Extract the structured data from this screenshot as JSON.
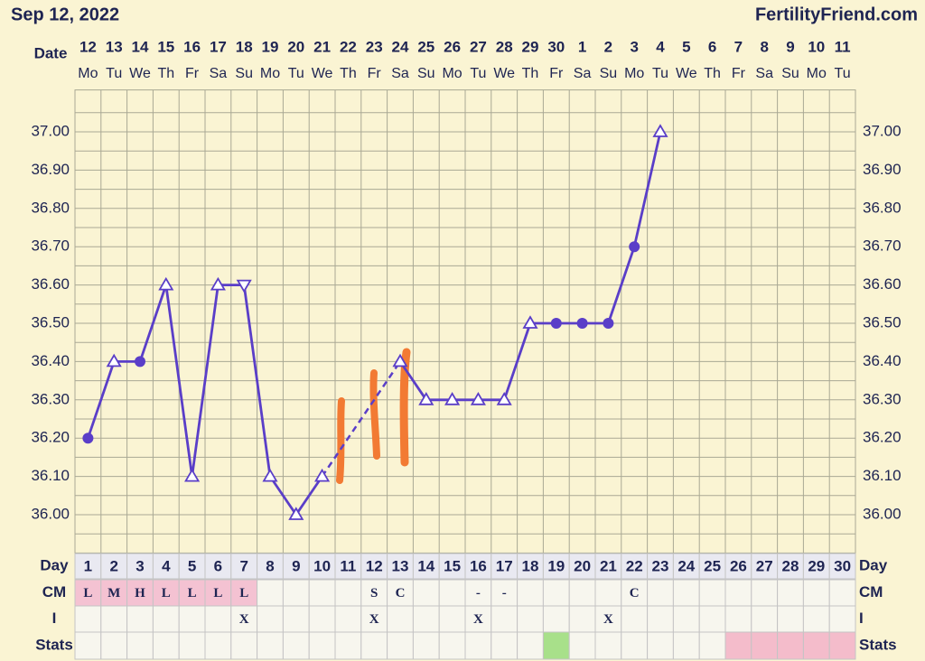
{
  "chart_data": {
    "type": "line",
    "title": "Sep 12, 2022",
    "source": "FertilityFriend.com",
    "date_label": "Date",
    "dates": [
      "12",
      "13",
      "14",
      "15",
      "16",
      "17",
      "18",
      "19",
      "20",
      "21",
      "22",
      "23",
      "24",
      "25",
      "26",
      "27",
      "28",
      "29",
      "30",
      "1",
      "2",
      "3",
      "4",
      "5",
      "6",
      "7",
      "8",
      "9",
      "10",
      "11"
    ],
    "weekdays": [
      "Mo",
      "Tu",
      "We",
      "Th",
      "Fr",
      "Sa",
      "Su",
      "Mo",
      "Tu",
      "We",
      "Th",
      "Fr",
      "Sa",
      "Su",
      "Mo",
      "Tu",
      "We",
      "Th",
      "Fr",
      "Sa",
      "Su",
      "Mo",
      "Tu",
      "We",
      "Th",
      "Fr",
      "Sa",
      "Su",
      "Mo",
      "Tu"
    ],
    "day_label": "Day",
    "categories": [
      1,
      2,
      3,
      4,
      5,
      6,
      7,
      8,
      9,
      10,
      11,
      12,
      13,
      14,
      15,
      16,
      17,
      18,
      19,
      20,
      21,
      22,
      23,
      24,
      25,
      26,
      27,
      28,
      29,
      30
    ],
    "series": [
      {
        "color": "#5a3ec8",
        "values": [
          36.2,
          36.4,
          36.4,
          36.6,
          36.1,
          36.6,
          36.6,
          36.1,
          36.0,
          36.1,
          null,
          null,
          36.4,
          36.3,
          36.3,
          36.3,
          36.3,
          36.5,
          36.5,
          36.5,
          36.5,
          36.7,
          37.0,
          null,
          null,
          null,
          null,
          null,
          null,
          null
        ],
        "markers": [
          "circle",
          "triangle",
          "circle",
          "triangle",
          "triangle",
          "triangle",
          "triangle-down",
          "triangle",
          "triangle",
          "triangle",
          null,
          null,
          "triangle",
          "triangle",
          "triangle",
          "triangle",
          "triangle",
          "triangle",
          "circle",
          "circle",
          "circle",
          "circle",
          "triangle",
          null,
          null,
          null,
          null,
          null,
          null,
          null
        ]
      }
    ],
    "gap_line": "dashed",
    "ylim": [
      35.9,
      37.1
    ],
    "yticks": [
      {
        "value": 36.0,
        "label": "36.00"
      },
      {
        "value": 36.1,
        "label": "36.10"
      },
      {
        "value": 36.2,
        "label": "36.20"
      },
      {
        "value": 36.3,
        "label": "36.30"
      },
      {
        "value": 36.4,
        "label": "36.40"
      },
      {
        "value": 36.5,
        "label": "36.50"
      },
      {
        "value": 36.6,
        "label": "36.60"
      },
      {
        "value": 36.7,
        "label": "36.70"
      },
      {
        "value": 36.8,
        "label": "36.80"
      },
      {
        "value": 36.9,
        "label": "36.90"
      },
      {
        "value": 37.0,
        "label": "37.00"
      }
    ],
    "grid": true,
    "cm_label": "CM",
    "cm": [
      "L",
      "M",
      "H",
      "L",
      "L",
      "L",
      "L",
      null,
      null,
      null,
      null,
      "S",
      "C",
      null,
      null,
      "-",
      "-",
      null,
      null,
      null,
      null,
      "C",
      null,
      null,
      null,
      null,
      null,
      null,
      null,
      null
    ],
    "cm_color": "#f4c2d2",
    "i_label": "I",
    "i": [
      null,
      null,
      null,
      null,
      null,
      null,
      "X",
      null,
      null,
      null,
      null,
      "X",
      null,
      null,
      null,
      "X",
      null,
      null,
      null,
      null,
      "X",
      null,
      null,
      null,
      null,
      null,
      null,
      null,
      null,
      null
    ],
    "stats_label": "Stats",
    "stats": [
      null,
      null,
      null,
      null,
      null,
      null,
      null,
      null,
      null,
      null,
      null,
      null,
      null,
      null,
      null,
      null,
      null,
      null,
      "#a8e08a",
      null,
      null,
      null,
      null,
      null,
      null,
      "#f4bccb",
      "#f4bccb",
      "#f4bccb",
      "#f4bccb",
      "#f4bccb"
    ]
  }
}
